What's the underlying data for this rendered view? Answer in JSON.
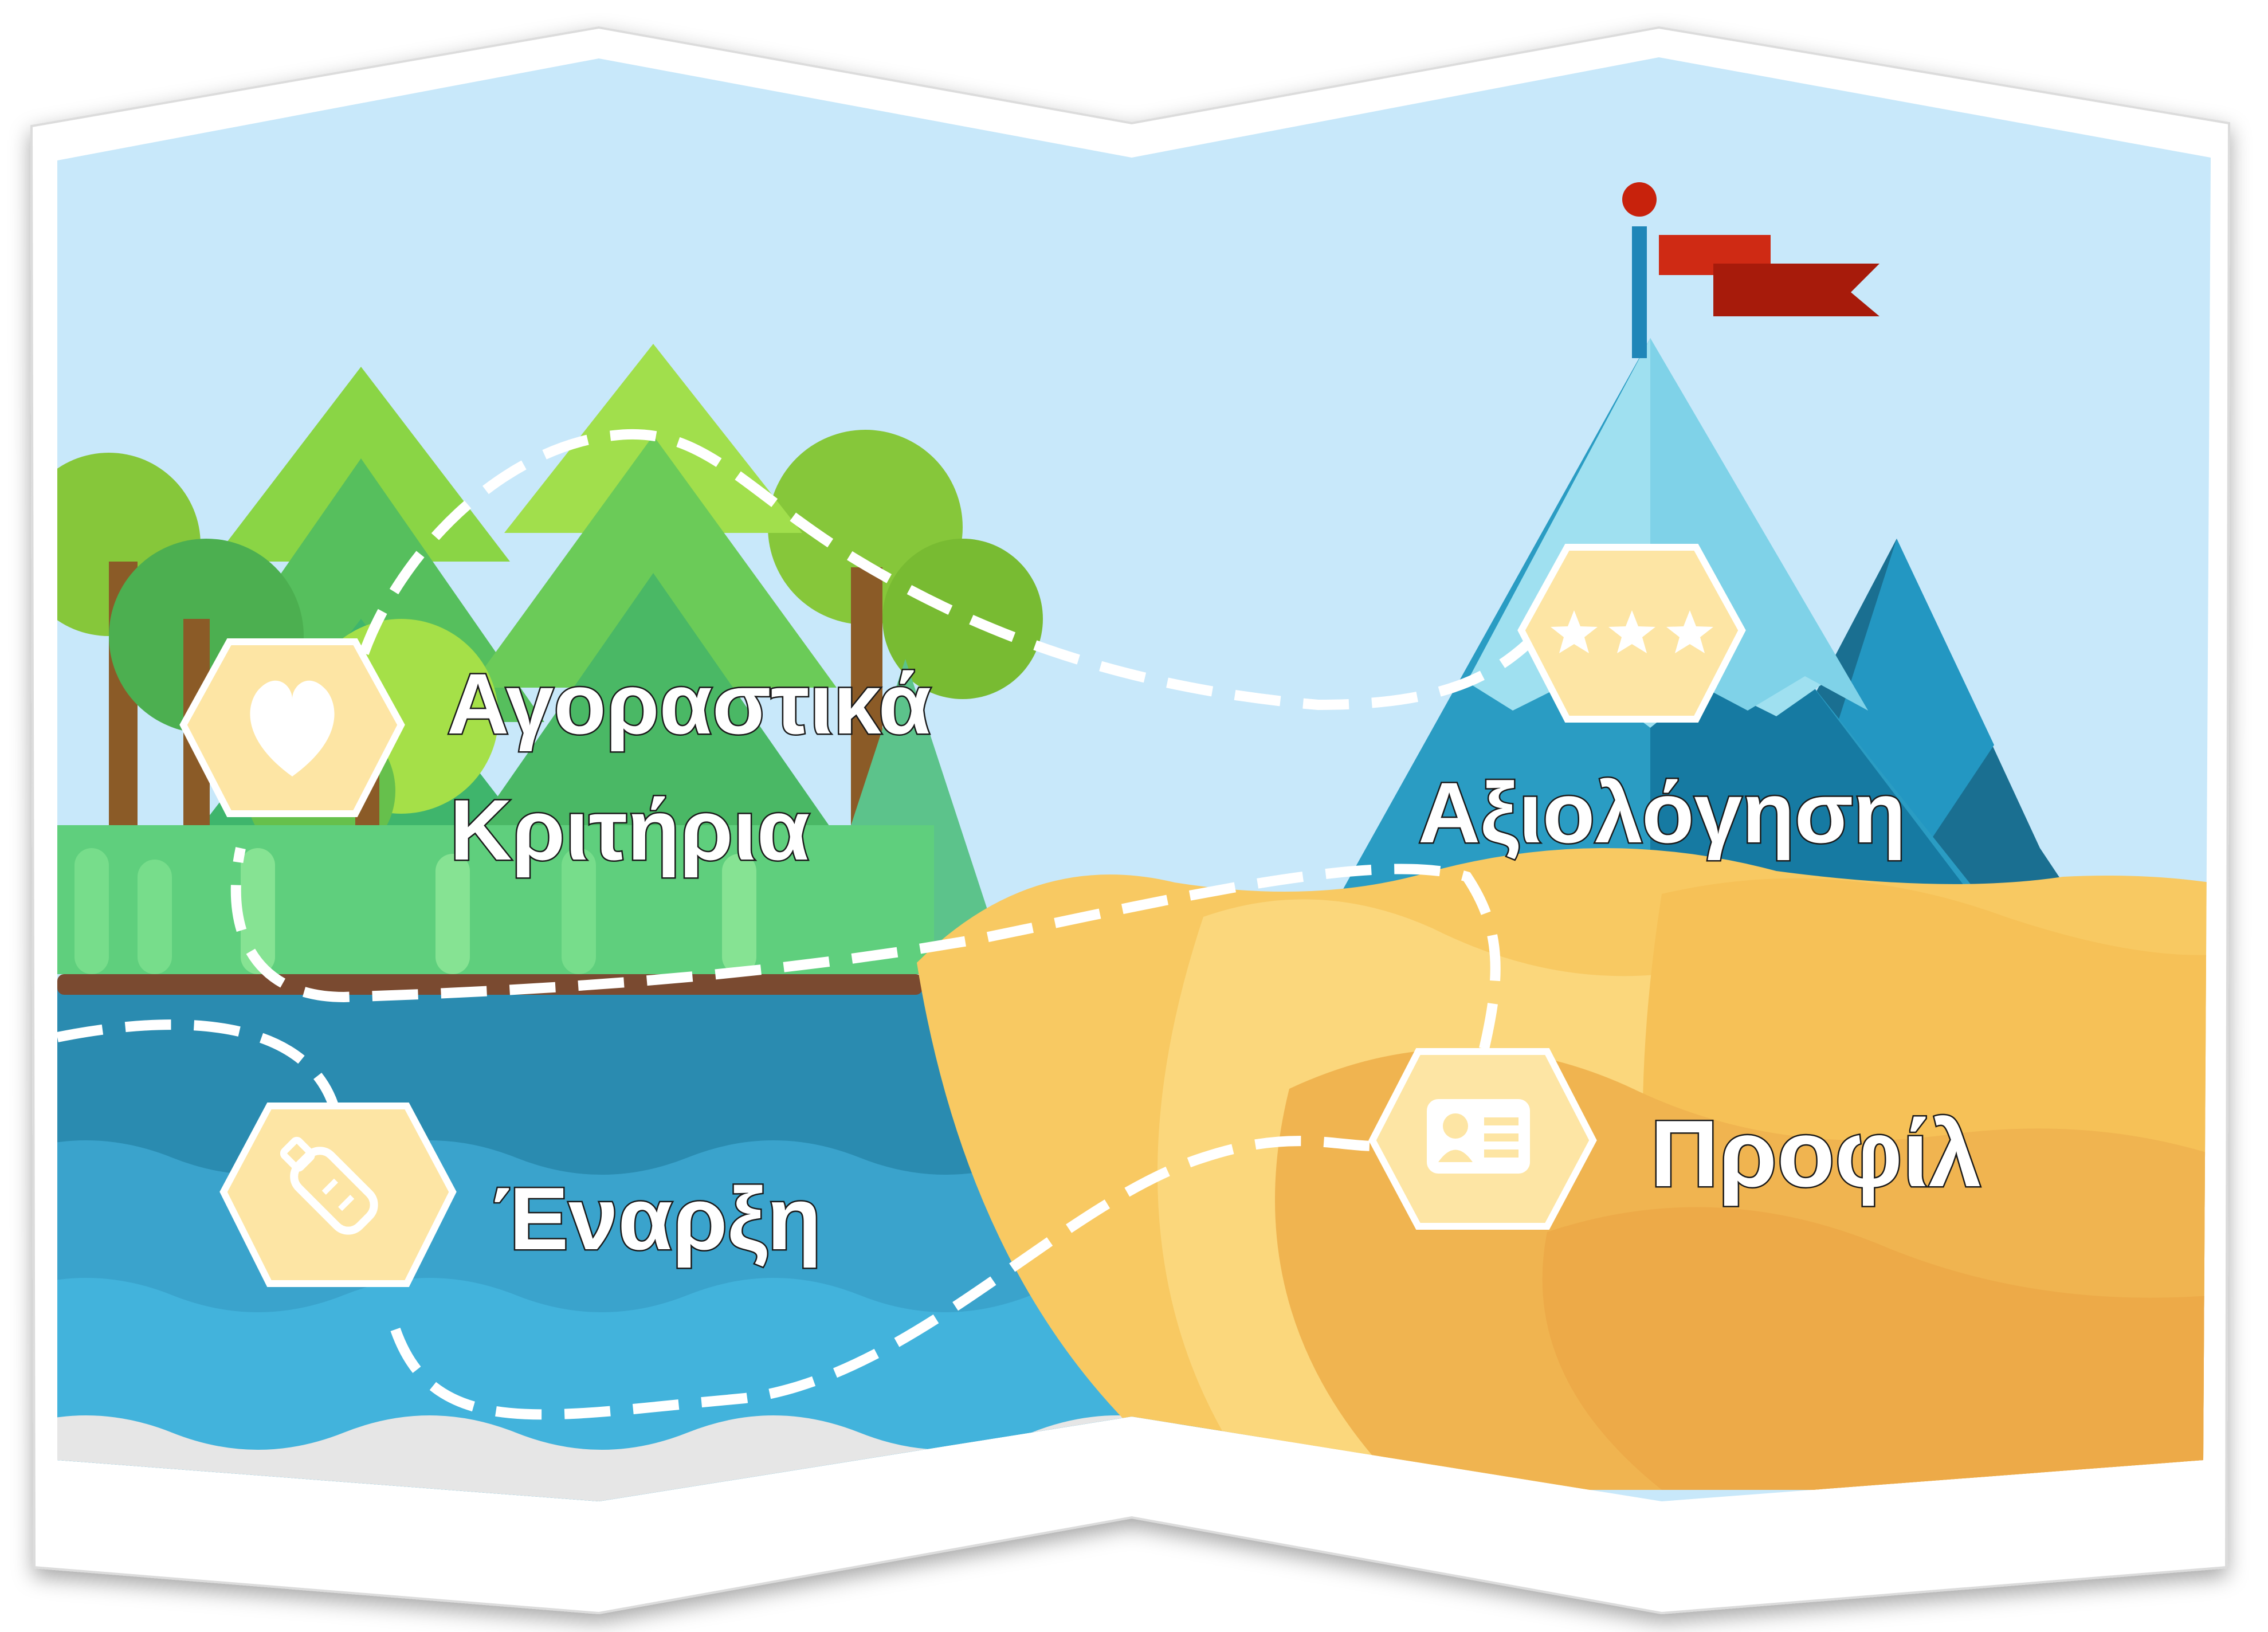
{
  "steps": [
    {
      "id": "start",
      "label": "Έναρξη",
      "icon": "message-bottle-icon"
    },
    {
      "id": "buying-criteria",
      "label_line1": "Αγοραστικά",
      "label_line2": "Κριτήρια",
      "icon": "heart-icon"
    },
    {
      "id": "profile",
      "label": "Προφίλ",
      "icon": "profile-card-icon"
    },
    {
      "id": "evaluation",
      "label": "Αξιολόγηση",
      "icon": "three-stars-icon"
    }
  ],
  "colors": {
    "sky": "#c8e8fa",
    "water_dark": "#2a8bb0",
    "water_light": "#42b3dc",
    "sand": "#f8c962",
    "sand_shadow": "#edaa48",
    "badge_fill": "#fde5a4",
    "badge_stroke": "#ffffff",
    "flag": "#c8220c",
    "path": "#ffffff"
  }
}
